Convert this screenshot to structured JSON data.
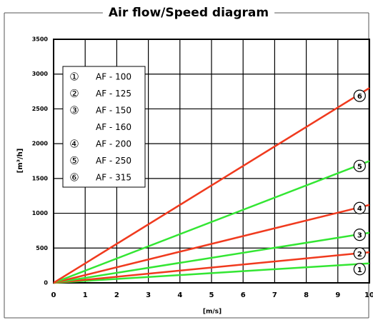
{
  "chart_data": {
    "type": "line",
    "title": "Air flow/Speed diagram",
    "x_label": "[m/s]",
    "y_label": "[m³/h]",
    "x": [
      0,
      10
    ],
    "series": [
      {
        "name": "1",
        "color": "#33e633",
        "values": [
          0,
          280
        ]
      },
      {
        "name": "2",
        "color": "#f03a1e",
        "values": [
          0,
          440
        ]
      },
      {
        "name": "3",
        "color": "#33e633",
        "values": [
          0,
          720
        ]
      },
      {
        "name": "4",
        "color": "#f03a1e",
        "values": [
          0,
          1120
        ]
      },
      {
        "name": "5",
        "color": "#33e633",
        "values": [
          0,
          1750
        ]
      },
      {
        "name": "6",
        "color": "#f03a1e",
        "values": [
          0,
          2800
        ]
      }
    ],
    "legend": [
      {
        "symbol": "①",
        "label": "AF - 100"
      },
      {
        "symbol": "②",
        "label": "AF - 125"
      },
      {
        "symbol": "③",
        "label": "AF - 150"
      },
      {
        "label": "AF - 160"
      },
      {
        "symbol": "④",
        "label": "AF - 200"
      },
      {
        "symbol": "⑤",
        "label": "AF - 250"
      },
      {
        "symbol": "⑥",
        "label": "AF - 315"
      }
    ],
    "xlim": [
      0,
      10
    ],
    "xticks": [
      0,
      1,
      2,
      3,
      4,
      5,
      6,
      7,
      8,
      9,
      10
    ],
    "ylim": [
      0,
      3500
    ],
    "yticks": [
      0,
      500,
      1000,
      1500,
      2000,
      2500,
      3000,
      3500
    ],
    "grid": true
  }
}
